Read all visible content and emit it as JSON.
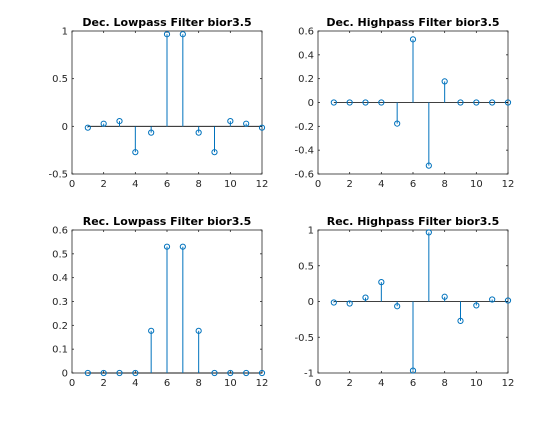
{
  "chart_data": [
    {
      "type": "stem",
      "title": "Dec. Lowpass Filter bior3.5",
      "x": [
        1,
        2,
        3,
        4,
        5,
        6,
        7,
        8,
        9,
        10,
        11,
        12
      ],
      "values": [
        -0.014,
        0.028,
        0.055,
        -0.271,
        -0.066,
        0.966,
        0.966,
        -0.066,
        -0.271,
        0.055,
        0.028,
        -0.014
      ],
      "xlim": [
        0,
        12
      ],
      "ylim": [
        -0.5,
        1
      ],
      "xticks": [
        0,
        2,
        4,
        6,
        8,
        10,
        12
      ],
      "yticks": [
        -0.5,
        0,
        0.5,
        1
      ],
      "ytick_labels": [
        "-0.5",
        "0",
        "0.5",
        "1"
      ],
      "color": "#0072bd"
    },
    {
      "type": "stem",
      "title": "Dec. Highpass Filter bior3.5",
      "x": [
        1,
        2,
        3,
        4,
        5,
        6,
        7,
        8,
        9,
        10,
        11,
        12
      ],
      "values": [
        0,
        0,
        0,
        0,
        -0.177,
        0.53,
        -0.53,
        0.177,
        0,
        0,
        0,
        0
      ],
      "xlim": [
        0,
        12
      ],
      "ylim": [
        -0.6,
        0.6
      ],
      "xticks": [
        0,
        2,
        4,
        6,
        8,
        10,
        12
      ],
      "yticks": [
        -0.6,
        -0.4,
        -0.2,
        0,
        0.2,
        0.4,
        0.6
      ],
      "ytick_labels": [
        "-0.6",
        "-0.4",
        "-0.2",
        "0",
        "0.2",
        "0.4",
        "0.6"
      ],
      "color": "#0072bd"
    },
    {
      "type": "stem",
      "title": "Rec. Lowpass Filter bior3.5",
      "x": [
        1,
        2,
        3,
        4,
        5,
        6,
        7,
        8,
        9,
        10,
        11,
        12
      ],
      "values": [
        0,
        0,
        0,
        0,
        0.177,
        0.53,
        0.53,
        0.177,
        0,
        0,
        0,
        0
      ],
      "xlim": [
        0,
        12
      ],
      "ylim": [
        0,
        0.6
      ],
      "xticks": [
        0,
        2,
        4,
        6,
        8,
        10,
        12
      ],
      "yticks": [
        0,
        0.1,
        0.2,
        0.3,
        0.4,
        0.5,
        0.6
      ],
      "ytick_labels": [
        "0",
        "0.1",
        "0.2",
        "0.3",
        "0.4",
        "0.5",
        "0.6"
      ],
      "color": "#0072bd"
    },
    {
      "type": "stem",
      "title": "Rec. Highpass Filter bior3.5",
      "x": [
        1,
        2,
        3,
        4,
        5,
        6,
        7,
        8,
        9,
        10,
        11,
        12
      ],
      "values": [
        -0.014,
        -0.028,
        0.055,
        0.271,
        -0.066,
        -0.966,
        0.966,
        0.066,
        -0.271,
        -0.055,
        0.028,
        0.014
      ],
      "xlim": [
        0,
        12
      ],
      "ylim": [
        -1,
        1
      ],
      "xticks": [
        0,
        2,
        4,
        6,
        8,
        10,
        12
      ],
      "yticks": [
        -1,
        -0.5,
        0,
        0.5,
        1
      ],
      "ytick_labels": [
        "-1",
        "-0.5",
        "0",
        "0.5",
        "1"
      ],
      "color": "#0072bd"
    }
  ]
}
